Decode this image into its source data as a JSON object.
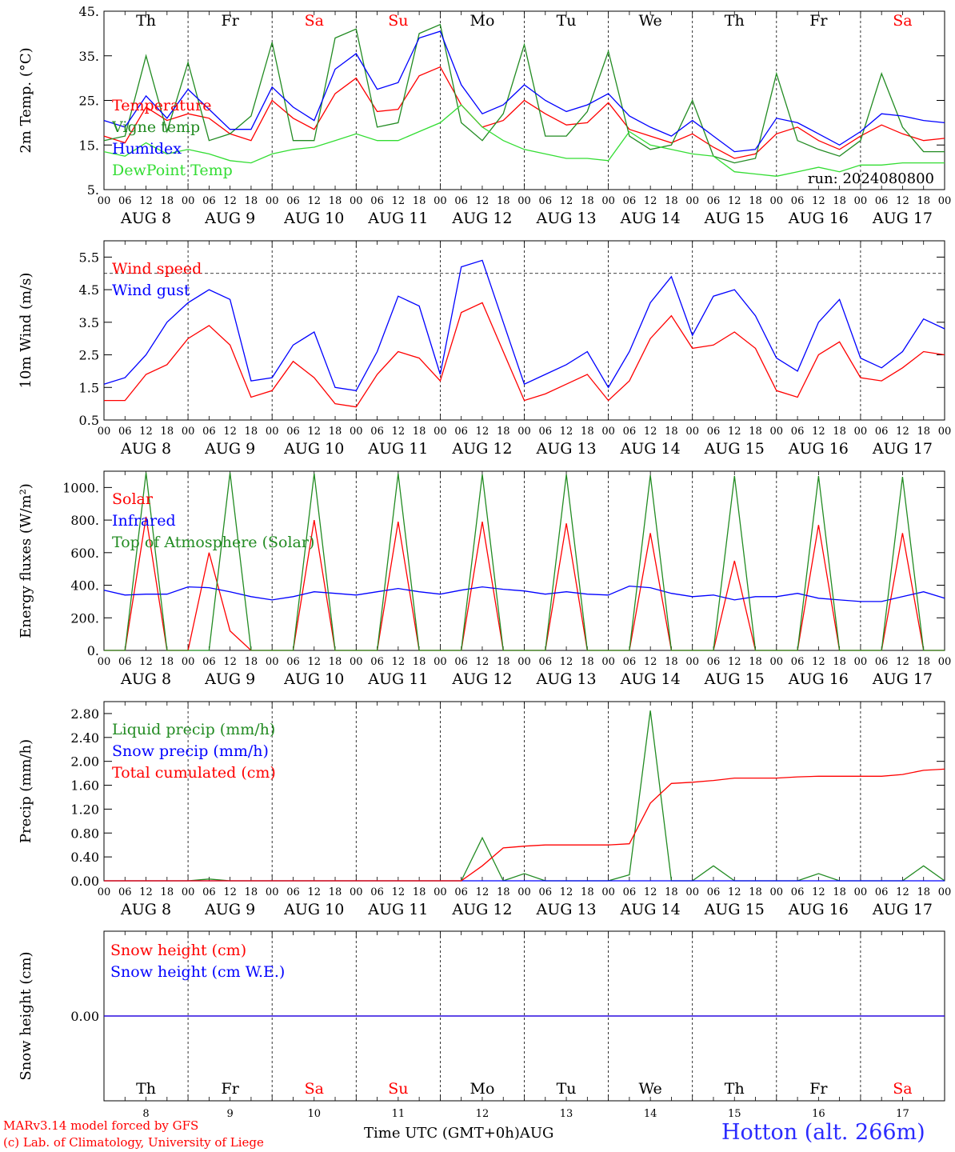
{
  "chart_data": [
    {
      "type": "line",
      "ylabel": "2m Temp. (°C)",
      "ylim": [
        5,
        45
      ],
      "yticks": [
        "5.",
        "15.",
        "25.",
        "35.",
        "45."
      ],
      "ytick_values": [
        5,
        15,
        25,
        35,
        45
      ],
      "annotation": "run: 2024080800",
      "legend_position": "left",
      "x_hours": [
        0,
        6,
        12,
        18,
        24,
        30,
        36,
        42,
        48,
        54,
        60,
        66,
        72,
        78,
        84,
        90,
        96,
        102,
        108,
        114,
        120,
        126,
        132,
        138,
        144,
        150,
        156,
        162,
        168,
        174,
        180,
        186,
        192,
        198,
        204,
        210,
        216,
        222,
        228,
        234,
        240
      ],
      "series": [
        {
          "name": "Temperature",
          "color": "#ff0000",
          "values": [
            17,
            15.5,
            23.5,
            20.5,
            22,
            21,
            17.5,
            16,
            25,
            21,
            18.5,
            26.5,
            30,
            22.5,
            23,
            30.5,
            32.5,
            24,
            19,
            20.5,
            25,
            22,
            19.5,
            20,
            24.5,
            18.5,
            17,
            15.5,
            17.5,
            14.5,
            12,
            13,
            17.5,
            19,
            16,
            14,
            17,
            19.5,
            17.5,
            16,
            16.5
          ]
        },
        {
          "name": "Vigne temp",
          "color": "#228b22",
          "values": [
            16,
            17,
            35,
            18,
            33.5,
            16,
            17.5,
            21.5,
            38,
            16,
            16,
            39,
            41,
            19,
            20,
            40,
            42,
            20,
            16,
            22,
            37.5,
            17,
            17,
            22.5,
            36,
            17,
            14,
            15,
            25,
            12.5,
            11,
            12,
            31,
            16,
            14,
            12.5,
            16,
            31,
            19,
            13.5,
            13.5
          ]
        },
        {
          "name": "Humidex",
          "color": "#0000ff",
          "values": [
            20.5,
            19,
            26,
            21,
            27.5,
            23,
            18.5,
            18.5,
            28,
            23.5,
            20.5,
            32,
            35.5,
            27.5,
            29,
            39,
            40.5,
            28.5,
            22,
            24,
            28.5,
            25,
            22.5,
            24,
            26.5,
            21.5,
            19,
            17,
            20.5,
            17,
            13.5,
            14,
            21,
            20,
            17.5,
            15,
            18,
            22,
            21.5,
            20.5,
            20
          ]
        },
        {
          "name": "DewPoint Temp",
          "color": "#33dd33",
          "values": [
            13.5,
            12.5,
            15.5,
            13,
            14,
            13,
            11.5,
            11,
            13,
            14,
            14.5,
            16,
            17.5,
            16,
            16,
            18,
            20,
            24,
            19,
            16,
            14,
            13,
            12,
            12,
            11.5,
            18,
            15,
            14,
            13,
            12.5,
            9,
            8.5,
            8,
            9,
            10,
            9,
            10.5,
            10.5,
            11,
            11,
            11
          ]
        }
      ]
    },
    {
      "type": "line",
      "ylabel": "10m Wind (m/s)",
      "ylim": [
        0.5,
        6
      ],
      "yticks": [
        "0.5",
        "1.5",
        "2.5",
        "3.5",
        "4.5",
        "5.5"
      ],
      "ytick_values": [
        0.5,
        1.5,
        2.5,
        3.5,
        4.5,
        5.5
      ],
      "reference_line": 5,
      "legend_position": "left",
      "x_hours": [
        0,
        6,
        12,
        18,
        24,
        30,
        36,
        42,
        48,
        54,
        60,
        66,
        72,
        78,
        84,
        90,
        96,
        102,
        108,
        114,
        120,
        126,
        132,
        138,
        144,
        150,
        156,
        162,
        168,
        174,
        180,
        186,
        192,
        198,
        204,
        210,
        216,
        222,
        228,
        234,
        240
      ],
      "series": [
        {
          "name": "Wind speed",
          "color": "#ff0000",
          "values": [
            1.1,
            1.1,
            1.9,
            2.2,
            3.0,
            3.4,
            2.8,
            1.2,
            1.4,
            2.3,
            1.8,
            1.0,
            0.9,
            1.9,
            2.6,
            2.4,
            1.7,
            3.8,
            4.1,
            2.6,
            1.1,
            1.3,
            1.6,
            1.9,
            1.1,
            1.7,
            3.0,
            3.7,
            2.7,
            2.8,
            3.2,
            2.7,
            1.4,
            1.2,
            2.5,
            2.9,
            1.8,
            1.7,
            2.1,
            2.6,
            2.5
          ]
        },
        {
          "name": "Wind gust",
          "color": "#0000ff",
          "values": [
            1.6,
            1.8,
            2.5,
            3.5,
            4.1,
            4.5,
            4.2,
            1.7,
            1.8,
            2.8,
            3.2,
            1.5,
            1.4,
            2.6,
            4.3,
            4.0,
            1.9,
            5.2,
            5.4,
            3.5,
            1.6,
            1.9,
            2.2,
            2.6,
            1.5,
            2.6,
            4.1,
            4.9,
            3.1,
            4.3,
            4.5,
            3.7,
            2.4,
            2.0,
            3.5,
            4.2,
            2.4,
            2.1,
            2.6,
            3.6,
            3.3
          ]
        }
      ]
    },
    {
      "type": "line",
      "ylabel": "Energy fluxes (W/m²)",
      "ylim": [
        0,
        1100
      ],
      "yticks": [
        "0.",
        "200.",
        "400.",
        "600.",
        "800.",
        "1000."
      ],
      "ytick_values": [
        0,
        200,
        400,
        600,
        800,
        1000
      ],
      "legend_position": "left",
      "x_hours": [
        0,
        6,
        12,
        18,
        24,
        30,
        36,
        42,
        48,
        54,
        60,
        66,
        72,
        78,
        84,
        90,
        96,
        102,
        108,
        114,
        120,
        126,
        132,
        138,
        144,
        150,
        156,
        162,
        168,
        174,
        180,
        186,
        192,
        198,
        204,
        210,
        216,
        222,
        228,
        234,
        240
      ],
      "series": [
        {
          "name": "Solar",
          "color": "#ff0000",
          "values": [
            0,
            0,
            820,
            0,
            0,
            600,
            120,
            0,
            0,
            0,
            800,
            0,
            0,
            0,
            790,
            0,
            0,
            0,
            790,
            0,
            0,
            0,
            780,
            0,
            0,
            0,
            720,
            0,
            0,
            0,
            550,
            0,
            0,
            0,
            770,
            0,
            0,
            0,
            720,
            0,
            0
          ]
        },
        {
          "name": "Infrared",
          "color": "#0000ff",
          "values": [
            370,
            340,
            345,
            345,
            390,
            385,
            360,
            330,
            310,
            330,
            360,
            350,
            340,
            360,
            380,
            360,
            345,
            370,
            390,
            375,
            365,
            345,
            360,
            345,
            340,
            395,
            385,
            350,
            330,
            340,
            310,
            330,
            330,
            350,
            320,
            310,
            300,
            300,
            330,
            360,
            320
          ]
        },
        {
          "name": "Top of Atmosphere (Solar)",
          "color": "#228b22",
          "values": [
            0,
            0,
            1090,
            0,
            0,
            0,
            1090,
            0,
            0,
            0,
            1085,
            0,
            0,
            0,
            1085,
            0,
            0,
            0,
            1080,
            0,
            0,
            0,
            1080,
            0,
            0,
            0,
            1075,
            0,
            0,
            0,
            1070,
            0,
            0,
            0,
            1070,
            0,
            0,
            0,
            1065,
            0,
            0
          ]
        }
      ]
    },
    {
      "type": "line",
      "ylabel": "Precip (mm/h)",
      "ylim": [
        0,
        3
      ],
      "yticks": [
        "0.00",
        "0.40",
        "0.80",
        "1.20",
        "1.60",
        "2.00",
        "2.40",
        "2.80"
      ],
      "ytick_values": [
        0,
        0.4,
        0.8,
        1.2,
        1.6,
        2.0,
        2.4,
        2.8
      ],
      "legend_position": "left",
      "x_hours": [
        0,
        6,
        12,
        18,
        24,
        30,
        36,
        42,
        48,
        54,
        60,
        66,
        72,
        78,
        84,
        90,
        96,
        102,
        108,
        114,
        120,
        126,
        132,
        138,
        144,
        150,
        156,
        162,
        168,
        174,
        180,
        186,
        192,
        198,
        204,
        210,
        216,
        222,
        228,
        234,
        240
      ],
      "series": [
        {
          "name": "Liquid precip (mm/h)",
          "color": "#228b22",
          "values": [
            0,
            0,
            0,
            0,
            0,
            0.03,
            0,
            0,
            0,
            0,
            0,
            0,
            0,
            0,
            0,
            0,
            0,
            0,
            0.72,
            0,
            0.12,
            0,
            0,
            0,
            0,
            0.1,
            2.85,
            0,
            0,
            0.25,
            0,
            0,
            0,
            0,
            0.12,
            0,
            0,
            0,
            0,
            0.25,
            0
          ]
        },
        {
          "name": "Snow precip (mm/h)",
          "color": "#0000ff",
          "values": [
            0,
            0,
            0,
            0,
            0,
            0,
            0,
            0,
            0,
            0,
            0,
            0,
            0,
            0,
            0,
            0,
            0,
            0,
            0,
            0,
            0,
            0,
            0,
            0,
            0,
            0,
            0,
            0,
            0,
            0,
            0,
            0,
            0,
            0,
            0,
            0,
            0,
            0,
            0,
            0,
            0
          ]
        },
        {
          "name": "Total cumulated (cm)",
          "color": "#ff0000",
          "values": [
            0,
            0,
            0,
            0,
            0,
            0,
            0,
            0,
            0,
            0,
            0,
            0,
            0,
            0,
            0,
            0,
            0,
            0,
            0.25,
            0.55,
            0.58,
            0.6,
            0.6,
            0.6,
            0.6,
            0.62,
            1.3,
            1.63,
            1.65,
            1.68,
            1.72,
            1.72,
            1.72,
            1.74,
            1.75,
            1.75,
            1.75,
            1.75,
            1.78,
            1.85,
            1.87
          ]
        }
      ]
    },
    {
      "type": "line",
      "ylabel": "Snow height (cm)",
      "ylim": [
        -1,
        1
      ],
      "yticks": [
        "0.00"
      ],
      "ytick_values": [
        0
      ],
      "legend_position": "left",
      "x_hours": [
        0,
        240
      ],
      "series": [
        {
          "name": "Snow height (cm)",
          "color": "#ff0000",
          "values": [
            0,
            0
          ]
        },
        {
          "name": "Snow height (cm W.E.)",
          "color": "#0000ff",
          "values": [
            0,
            0
          ]
        }
      ]
    }
  ],
  "x_axis": {
    "hour_labels": [
      "00",
      "06",
      "12",
      "18"
    ],
    "final_label": "00",
    "date_labels": [
      "AUG  8",
      "AUG  9",
      "AUG 10",
      "AUG 11",
      "AUG 12",
      "AUG 13",
      "AUG 14",
      "AUG 15",
      "AUG 16",
      "AUG 17"
    ],
    "day_names": [
      "Th",
      "Fr",
      "Sa",
      "Su",
      "Mo",
      "Tu",
      "We",
      "Th",
      "Fr",
      "Sa"
    ],
    "weekend_flags": [
      false,
      false,
      true,
      true,
      false,
      false,
      false,
      false,
      false,
      true
    ],
    "day_numbers": [
      "8",
      "9",
      "10",
      "11",
      "12",
      "13",
      "14",
      "15",
      "16",
      "17"
    ],
    "xlabel": "Time UTC (GMT+0h)",
    "month": "AUG"
  },
  "colors": {
    "weekday": "#000000",
    "weekend": "#ff0000"
  },
  "footer": {
    "model_line": "MARv3.14 model forced by GFS",
    "credit_line": "(c) Lab. of Climatology, University of Liege",
    "station": "Hotton (alt. 266m)"
  }
}
